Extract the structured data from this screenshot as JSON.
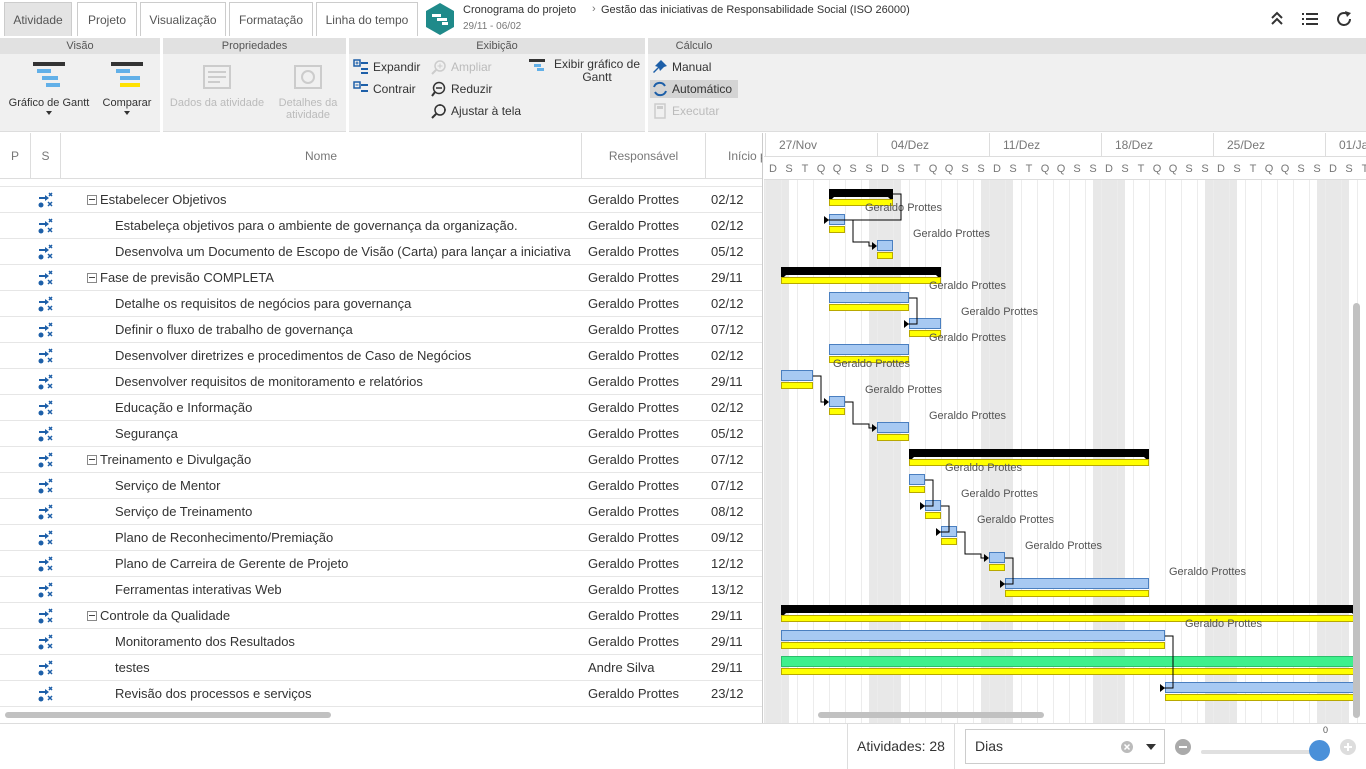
{
  "tabs": [
    {
      "label": "Atividade",
      "active": true
    },
    {
      "label": "Projeto",
      "active": false
    },
    {
      "label": "Visualização",
      "active": false
    },
    {
      "label": "Formatação",
      "active": false
    },
    {
      "label": "Linha do tempo",
      "active": false
    }
  ],
  "breadcrumb": {
    "section": "Cronograma do projeto",
    "separator": "›",
    "project": "Gestão das iniciativas de Responsabilidade Social (ISO 26000)",
    "dates": "29/11 - 06/02"
  },
  "top_icons": [
    "collapse-up-icon",
    "list-icon",
    "refresh-icon"
  ],
  "ribbon": {
    "visao": {
      "title": "Visão",
      "gantt_label": "Gráfico de Gantt",
      "compare_label": "Comparar"
    },
    "propriedades": {
      "title": "Propriedades",
      "task_data_label": "Dados da atividade",
      "task_details_label": "Detalhes da atividade"
    },
    "exibicao": {
      "title": "Exibição",
      "expand": "Expandir",
      "collapse": "Contrair",
      "zoom_in": "Ampliar",
      "zoom_out": "Reduzir",
      "fit": "Ajustar à tela",
      "show_gantt": "Exibir gráfico de Gantt"
    },
    "calculo": {
      "title": "Cálculo",
      "manual": "Manual",
      "auto": "Automático",
      "run": "Executar"
    }
  },
  "grid": {
    "headers": {
      "p": "P",
      "s": "S",
      "name": "Nome",
      "owner": "Responsável",
      "start": "Início p"
    },
    "rows": [
      {
        "name": "Estabelecer Objetivos",
        "owner": "Geraldo Prottes",
        "start": "02/12",
        "level": 0
      },
      {
        "name": "Estabeleça objetivos para o ambiente de governança da organização.",
        "owner": "Geraldo Prottes",
        "start": "02/12",
        "level": 1
      },
      {
        "name": "Desenvolva um Documento de Escopo de Visão (Carta) para lançar a iniciativa",
        "owner": "Geraldo Prottes",
        "start": "05/12",
        "level": 1
      },
      {
        "name": "Fase de previsão COMPLETA",
        "owner": "Geraldo Prottes",
        "start": "29/11",
        "level": 0
      },
      {
        "name": "Detalhe os requisitos de negócios para governança",
        "owner": "Geraldo Prottes",
        "start": "02/12",
        "level": 1
      },
      {
        "name": "Definir o fluxo de trabalho de governança",
        "owner": "Geraldo Prottes",
        "start": "07/12",
        "level": 1
      },
      {
        "name": "Desenvolver diretrizes e procedimentos de Caso de Negócios",
        "owner": "Geraldo Prottes",
        "start": "02/12",
        "level": 1
      },
      {
        "name": "Desenvolver requisitos de monitoramento e relatórios",
        "owner": "Geraldo Prottes",
        "start": "29/11",
        "level": 1
      },
      {
        "name": "Educação e Informação",
        "owner": "Geraldo Prottes",
        "start": "02/12",
        "level": 1
      },
      {
        "name": "Segurança",
        "owner": "Geraldo Prottes",
        "start": "05/12",
        "level": 1
      },
      {
        "name": "Treinamento e Divulgação",
        "owner": "Geraldo Prottes",
        "start": "07/12",
        "level": 0
      },
      {
        "name": "Serviço de Mentor",
        "owner": "Geraldo Prottes",
        "start": "07/12",
        "level": 1
      },
      {
        "name": "Serviço de Treinamento",
        "owner": "Geraldo Prottes",
        "start": "08/12",
        "level": 1
      },
      {
        "name": "Plano de Reconhecimento/Premiação",
        "owner": "Geraldo Prottes",
        "start": "09/12",
        "level": 1
      },
      {
        "name": "Plano de Carreira de Gerente de Projeto",
        "owner": "Geraldo Prottes",
        "start": "12/12",
        "level": 1
      },
      {
        "name": "Ferramentas interativas Web",
        "owner": "Geraldo Prottes",
        "start": "13/12",
        "level": 1
      },
      {
        "name": "Controle da Qualidade",
        "owner": "Geraldo Prottes",
        "start": "29/11",
        "level": 0
      },
      {
        "name": "Monitoramento dos Resultados",
        "owner": "Geraldo Prottes",
        "start": "29/11",
        "level": 1
      },
      {
        "name": "testes",
        "owner": "Andre Silva",
        "start": "29/11",
        "level": 1
      },
      {
        "name": "Revisão dos processos e serviços",
        "owner": "Geraldo Prottes",
        "start": "23/12",
        "level": 1
      }
    ]
  },
  "gantt": {
    "weeks": [
      "27/Nov",
      "04/Dez",
      "11/Dez",
      "18/Dez",
      "25/Dez",
      "01/Ja"
    ],
    "day_letters": [
      "D",
      "S",
      "T",
      "Q",
      "Q",
      "S",
      "S",
      "D",
      "S",
      "T",
      "Q",
      "Q",
      "S",
      "S",
      "D",
      "S",
      "T",
      "Q",
      "Q",
      "S",
      "S",
      "D",
      "S",
      "T",
      "Q",
      "Q",
      "S",
      "S",
      "D",
      "S",
      "T",
      "Q",
      "Q",
      "S",
      "S",
      "D",
      "S",
      "T"
    ],
    "weekend_shade": "#e8e8e8",
    "colors": {
      "summary": "#000000",
      "task": "#a7c9f2",
      "task_border": "#4a7fc0",
      "baseline": "#ffff00",
      "baseline_border": "#b8a800",
      "special": "#3ef08c"
    },
    "bars": [
      {
        "row": 0,
        "type": "summary",
        "start": 4,
        "days": 4,
        "label": ""
      },
      {
        "row": 1,
        "type": "task",
        "start": 4,
        "days": 1,
        "label": "Geraldo Prottes"
      },
      {
        "row": 2,
        "type": "task",
        "start": 7,
        "days": 1,
        "label": "Geraldo Prottes"
      },
      {
        "row": 3,
        "type": "summary",
        "start": 1,
        "days": 10,
        "label": ""
      },
      {
        "row": 4,
        "type": "task",
        "start": 4,
        "days": 5,
        "label": "Geraldo Prottes"
      },
      {
        "row": 5,
        "type": "task",
        "start": 9,
        "days": 2,
        "label": "Geraldo Prottes"
      },
      {
        "row": 6,
        "type": "task",
        "start": 4,
        "days": 5,
        "label": "Geraldo Prottes"
      },
      {
        "row": 7,
        "type": "task",
        "start": 1,
        "days": 2,
        "label": "Geraldo Prottes"
      },
      {
        "row": 8,
        "type": "task",
        "start": 4,
        "days": 1,
        "label": "Geraldo Prottes"
      },
      {
        "row": 9,
        "type": "task",
        "start": 7,
        "days": 2,
        "label": "Geraldo Prottes"
      },
      {
        "row": 10,
        "type": "summary",
        "start": 9,
        "days": 15,
        "label": ""
      },
      {
        "row": 11,
        "type": "task",
        "start": 9,
        "days": 1,
        "label": "Geraldo Prottes"
      },
      {
        "row": 12,
        "type": "task",
        "start": 10,
        "days": 1,
        "label": "Geraldo Prottes"
      },
      {
        "row": 13,
        "type": "task",
        "start": 11,
        "days": 1,
        "label": "Geraldo Prottes"
      },
      {
        "row": 14,
        "type": "task",
        "start": 14,
        "days": 1,
        "label": "Geraldo Prottes"
      },
      {
        "row": 15,
        "type": "task",
        "start": 15,
        "days": 9,
        "label": "Geraldo Prottes"
      },
      {
        "row": 16,
        "type": "summary",
        "start": 1,
        "days": 36,
        "label": ""
      },
      {
        "row": 17,
        "type": "task",
        "start": 1,
        "days": 24,
        "label": "Geraldo Prottes"
      },
      {
        "row": 18,
        "type": "special",
        "start": 1,
        "days": 36,
        "label": ""
      },
      {
        "row": 19,
        "type": "task",
        "start": 25,
        "days": 12,
        "label": ""
      }
    ],
    "links": [
      [
        0,
        1
      ],
      [
        1,
        2
      ],
      [
        4,
        5
      ],
      [
        7,
        8
      ],
      [
        8,
        9
      ],
      [
        11,
        12
      ],
      [
        12,
        13
      ],
      [
        13,
        14
      ],
      [
        14,
        15
      ],
      [
        17,
        19
      ]
    ]
  },
  "footer": {
    "activities": "Atividades: 28",
    "scale": "Dias",
    "zoom_value": "0"
  }
}
